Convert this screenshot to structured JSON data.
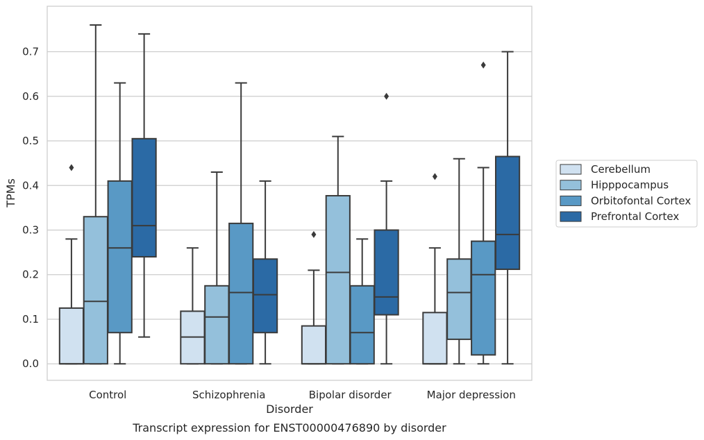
{
  "caption": "Transcript expression for ENST00000476890 by disorder",
  "chart_data": {
    "type": "box",
    "xlabel": "Disorder",
    "ylabel": "TPMs",
    "ylim": [
      -0.037,
      0.802
    ],
    "yticks": [
      0.0,
      0.1,
      0.2,
      0.3,
      0.4,
      0.5,
      0.6,
      0.7
    ],
    "ytick_labels": [
      "0.0",
      "0.1",
      "0.2",
      "0.3",
      "0.4",
      "0.5",
      "0.6",
      "0.7"
    ],
    "grid": "horizontal",
    "legend_position": "right",
    "categories": [
      "Control",
      "Schizophrenia",
      "Bipolar disorder",
      "Major depression"
    ],
    "series": [
      {
        "name": "Cerebellum",
        "color": "#d0e1f0",
        "boxes": [
          {
            "whislo": 0.0,
            "q1": 0.0,
            "med": 0.0,
            "q3": 0.125,
            "whishi": 0.28,
            "fliers": [
              0.44
            ]
          },
          {
            "whislo": 0.0,
            "q1": 0.0,
            "med": 0.06,
            "q3": 0.118,
            "whishi": 0.26,
            "fliers": []
          },
          {
            "whislo": 0.0,
            "q1": 0.0,
            "med": 0.0,
            "q3": 0.085,
            "whishi": 0.21,
            "fliers": [
              0.29
            ]
          },
          {
            "whislo": 0.0,
            "q1": 0.0,
            "med": 0.0,
            "q3": 0.115,
            "whishi": 0.26,
            "fliers": [
              0.42
            ]
          }
        ]
      },
      {
        "name": "Hipppocampus",
        "color": "#94c0db",
        "boxes": [
          {
            "whislo": 0.0,
            "q1": 0.0,
            "med": 0.14,
            "q3": 0.33,
            "whishi": 0.76,
            "fliers": []
          },
          {
            "whislo": 0.0,
            "q1": 0.0,
            "med": 0.105,
            "q3": 0.175,
            "whishi": 0.43,
            "fliers": []
          },
          {
            "whislo": 0.0,
            "q1": 0.0,
            "med": 0.205,
            "q3": 0.377,
            "whishi": 0.51,
            "fliers": []
          },
          {
            "whislo": 0.0,
            "q1": 0.055,
            "med": 0.16,
            "q3": 0.235,
            "whishi": 0.46,
            "fliers": []
          }
        ]
      },
      {
        "name": "Orbitofontal Cortex",
        "color": "#5999c5",
        "boxes": [
          {
            "whislo": 0.0,
            "q1": 0.07,
            "med": 0.26,
            "q3": 0.41,
            "whishi": 0.63,
            "fliers": []
          },
          {
            "whislo": 0.0,
            "q1": 0.0,
            "med": 0.16,
            "q3": 0.315,
            "whishi": 0.63,
            "fliers": []
          },
          {
            "whislo": 0.0,
            "q1": 0.0,
            "med": 0.07,
            "q3": 0.175,
            "whishi": 0.28,
            "fliers": []
          },
          {
            "whislo": 0.0,
            "q1": 0.02,
            "med": 0.2,
            "q3": 0.275,
            "whishi": 0.44,
            "fliers": [
              0.67
            ]
          }
        ]
      },
      {
        "name": "Prefrontal Cortex",
        "color": "#2b6aa5",
        "boxes": [
          {
            "whislo": 0.06,
            "q1": 0.24,
            "med": 0.31,
            "q3": 0.505,
            "whishi": 0.74,
            "fliers": []
          },
          {
            "whislo": 0.0,
            "q1": 0.07,
            "med": 0.155,
            "q3": 0.235,
            "whishi": 0.41,
            "fliers": []
          },
          {
            "whislo": 0.0,
            "q1": 0.11,
            "med": 0.15,
            "q3": 0.3,
            "whishi": 0.41,
            "fliers": [
              0.6
            ]
          },
          {
            "whislo": 0.0,
            "q1": 0.212,
            "med": 0.29,
            "q3": 0.465,
            "whishi": 0.7,
            "fliers": []
          }
        ]
      }
    ]
  }
}
